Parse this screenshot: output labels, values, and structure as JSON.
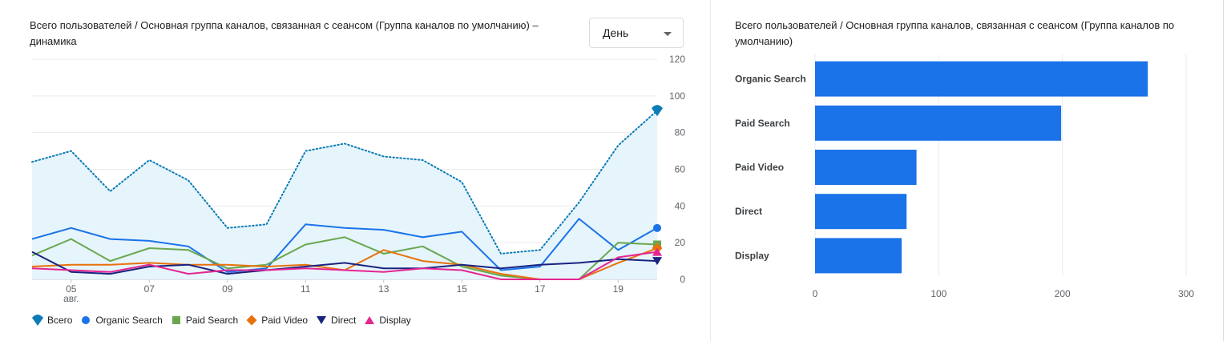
{
  "line_panel": {
    "title": "Всего пользователей / Основная группа каналов, связанная с сеансом (Группа каналов по умолчанию) – динамика",
    "granularity": "День"
  },
  "bar_panel": {
    "title": "Всего пользователей / Основная группа каналов, связанная с сеансом (Группа каналов по умолчанию)"
  },
  "chart_data": [
    {
      "type": "line",
      "x": [
        "04",
        "05",
        "06",
        "07",
        "08",
        "09",
        "10",
        "11",
        "12",
        "13",
        "14",
        "15",
        "16",
        "17",
        "18",
        "19",
        "20"
      ],
      "x_tick_labels": [
        "05",
        "07",
        "09",
        "11",
        "13",
        "15",
        "17",
        "19"
      ],
      "x_month_label": "авг.",
      "ylim": [
        0,
        120
      ],
      "y_ticks": [
        0,
        20,
        40,
        60,
        80,
        100,
        120
      ],
      "y_axis_position": "right",
      "grid": true,
      "legend_position": "bottom-left",
      "series": [
        {
          "name": "Всего",
          "color": "#0b7cb5",
          "style": "dotted-area",
          "marker": "pin",
          "values": [
            64,
            70,
            48,
            65,
            54,
            28,
            30,
            70,
            74,
            67,
            65,
            53,
            14,
            16,
            42,
            73,
            92
          ]
        },
        {
          "name": "Organic Search",
          "color": "#1a73e8",
          "marker": "circle",
          "values": [
            22,
            28,
            22,
            21,
            18,
            4,
            6,
            30,
            28,
            27,
            23,
            26,
            5,
            7,
            33,
            16,
            28
          ]
        },
        {
          "name": "Paid Search",
          "color": "#6aa84f",
          "marker": "square",
          "values": [
            13,
            22,
            10,
            17,
            16,
            6,
            8,
            19,
            23,
            14,
            18,
            7,
            2,
            0,
            0,
            20,
            19
          ]
        },
        {
          "name": "Paid Video",
          "color": "#e8710a",
          "marker": "diamond",
          "values": [
            7,
            8,
            8,
            9,
            8,
            8,
            7,
            8,
            5,
            16,
            10,
            8,
            3,
            0,
            0,
            9,
            17
          ]
        },
        {
          "name": "Direct",
          "color": "#1a237e",
          "marker": "triangle-down",
          "values": [
            15,
            4,
            3,
            7,
            8,
            3,
            5,
            7,
            9,
            6,
            6,
            8,
            6,
            8,
            9,
            11,
            10
          ]
        },
        {
          "name": "Display",
          "color": "#e52592",
          "marker": "triangle-up",
          "values": [
            6,
            5,
            4,
            8,
            3,
            5,
            5,
            6,
            5,
            4,
            6,
            5,
            0,
            0,
            0,
            12,
            15
          ]
        }
      ]
    },
    {
      "type": "bar",
      "orientation": "horizontal",
      "categories": [
        "Organic Search",
        "Paid Search",
        "Paid Video",
        "Direct",
        "Display"
      ],
      "values": [
        269,
        199,
        82,
        74,
        70
      ],
      "xlim": [
        0,
        300
      ],
      "x_ticks": [
        0,
        100,
        200,
        300
      ],
      "color": "#1a73e8",
      "grid": true
    }
  ]
}
